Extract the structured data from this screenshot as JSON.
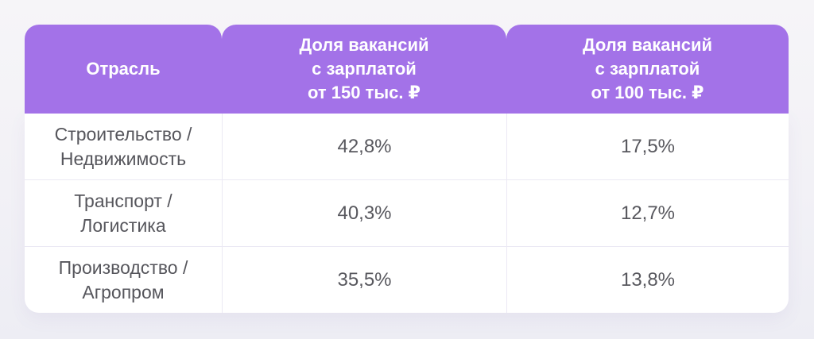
{
  "page": {
    "background_top": "#f6f5f8",
    "background_bottom": "#ededf4",
    "accent_color": "#a372e8",
    "body_text_color": "#56565c",
    "separator_color": "#ebe9f4"
  },
  "table": {
    "header": {
      "industry": "Отрасль",
      "share_150k": "Доля вакансий\nс зарплатой\nот 150 тыс. ₽",
      "share_100k": "Доля вакансий\nс зарплатой\nот 100 тыс. ₽"
    },
    "rows": [
      {
        "industry": "Строительство /\nНедвижимость",
        "share_150k": "42,8%",
        "share_100k": "17,5%"
      },
      {
        "industry": "Транспорт /\nЛогистика",
        "share_150k": "40,3%",
        "share_100k": "12,7%"
      },
      {
        "industry": "Производство /\nАгропром",
        "share_150k": "35,5%",
        "share_100k": "13,8%"
      }
    ]
  },
  "chart_data": {
    "type": "table",
    "columns": [
      "Отрасль",
      "Доля вакансий с зарплатой от 150 тыс. ₽",
      "Доля вакансий с зарплатой от 100 тыс. ₽"
    ],
    "rows": [
      [
        "Строительство / Недвижимость",
        "42,8%",
        "17,5%"
      ],
      [
        "Транспорт / Логистика",
        "40,3%",
        "12,7%"
      ],
      [
        "Производство / Агропром",
        "35,5%",
        "13,8%"
      ]
    ],
    "values_numeric_percent": {
      "from_150k": [
        42.8,
        40.3,
        35.5
      ],
      "from_100k": [
        17.5,
        12.7,
        13.8
      ]
    }
  }
}
